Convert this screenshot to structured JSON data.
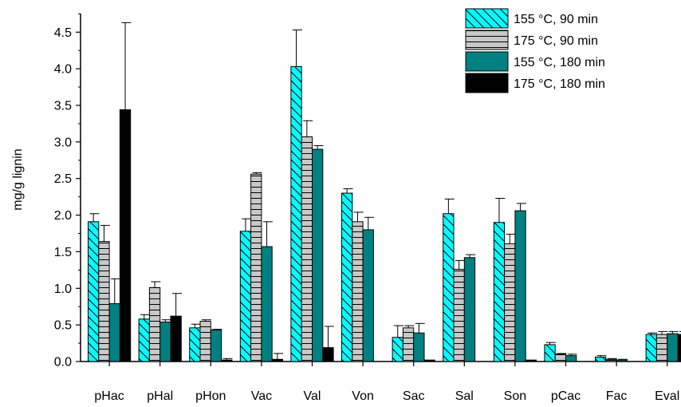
{
  "chart_data": {
    "type": "bar",
    "title": "",
    "xlabel": "",
    "ylabel": "mg/g lignin",
    "ylim": [
      0,
      4.8
    ],
    "yticks": [
      "0.0",
      "0.5",
      "1.0",
      "1.5",
      "2.0",
      "2.5",
      "3.0",
      "3.5",
      "4.0",
      "4.5"
    ],
    "categories": [
      "pHac",
      "pHal",
      "pHon",
      "Vac",
      "Val",
      "Von",
      "Sac",
      "Sal",
      "Son",
      "pCac",
      "Fac",
      "Eval"
    ],
    "legend_position": "top-right",
    "grid": false,
    "series": [
      {
        "name": "155 °C, 90 min",
        "fill": "#00ffff",
        "pattern": "diagonal-hatch",
        "values": [
          1.91,
          0.58,
          0.46,
          1.78,
          4.03,
          2.3,
          0.33,
          2.02,
          1.9,
          0.23,
          0.06,
          0.37
        ],
        "errors": [
          0.11,
          0.06,
          0.05,
          0.17,
          0.5,
          0.06,
          0.16,
          0.2,
          0.33,
          0.03,
          0.02,
          0.02
        ]
      },
      {
        "name": "175 °C, 90 min",
        "fill": "#c8c8c8",
        "pattern": "horizontal-lines",
        "values": [
          1.64,
          1.01,
          0.55,
          2.56,
          3.07,
          1.91,
          0.46,
          1.26,
          1.61,
          0.1,
          0.03,
          0.37
        ],
        "errors": [
          0.22,
          0.08,
          0.02,
          0.02,
          0.22,
          0.13,
          0.03,
          0.12,
          0.13,
          0.01,
          0.01,
          0.04
        ]
      },
      {
        "name": "155 °C, 180 min",
        "fill": "#008080",
        "pattern": "solid",
        "values": [
          0.79,
          0.54,
          0.43,
          1.57,
          2.9,
          1.8,
          0.39,
          1.42,
          2.06,
          0.08,
          0.02,
          0.38
        ],
        "errors": [
          0.34,
          0.03,
          0.01,
          0.34,
          0.05,
          0.17,
          0.13,
          0.04,
          0.1,
          0.02,
          0.01,
          0.03
        ]
      },
      {
        "name": "175 °C, 180 min",
        "fill": "#000000",
        "pattern": "solid",
        "values": [
          3.44,
          0.62,
          0.02,
          0.03,
          0.19,
          0.0,
          0.02,
          0.0,
          0.02,
          0.0,
          0.0,
          0.37
        ],
        "errors": [
          1.19,
          0.31,
          0.02,
          0.08,
          0.29,
          0.0,
          0.0,
          0.0,
          0.0,
          0.0,
          0.0,
          0.04
        ]
      }
    ]
  }
}
